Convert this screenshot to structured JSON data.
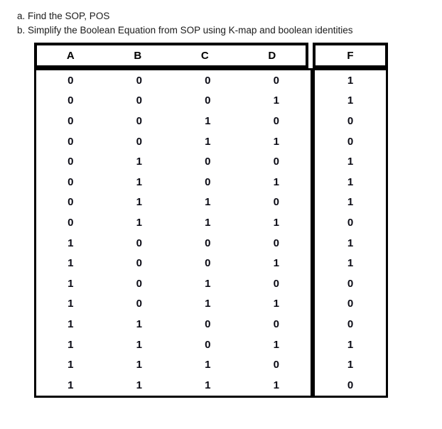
{
  "instructions": {
    "line_a": "a. Find the SOP, POS",
    "line_b": "b. Simplify the Boolean Equation from SOP using K-map and boolean identities"
  },
  "truth_table": {
    "headers": [
      "A",
      "B",
      "C",
      "D",
      "F"
    ],
    "rows": [
      [
        0,
        0,
        0,
        0,
        1
      ],
      [
        0,
        0,
        0,
        1,
        1
      ],
      [
        0,
        0,
        1,
        0,
        0
      ],
      [
        0,
        0,
        1,
        1,
        0
      ],
      [
        0,
        1,
        0,
        0,
        1
      ],
      [
        0,
        1,
        0,
        1,
        1
      ],
      [
        0,
        1,
        1,
        0,
        1
      ],
      [
        0,
        1,
        1,
        1,
        0
      ],
      [
        1,
        0,
        0,
        0,
        1
      ],
      [
        1,
        0,
        0,
        1,
        1
      ],
      [
        1,
        0,
        1,
        0,
        0
      ],
      [
        1,
        0,
        1,
        1,
        0
      ],
      [
        1,
        1,
        0,
        0,
        0
      ],
      [
        1,
        1,
        0,
        1,
        1
      ],
      [
        1,
        1,
        1,
        0,
        1
      ],
      [
        1,
        1,
        1,
        1,
        0
      ]
    ]
  },
  "colors": {
    "border": "#000000",
    "text": "#1b1b1b",
    "background": "#ffffff"
  }
}
